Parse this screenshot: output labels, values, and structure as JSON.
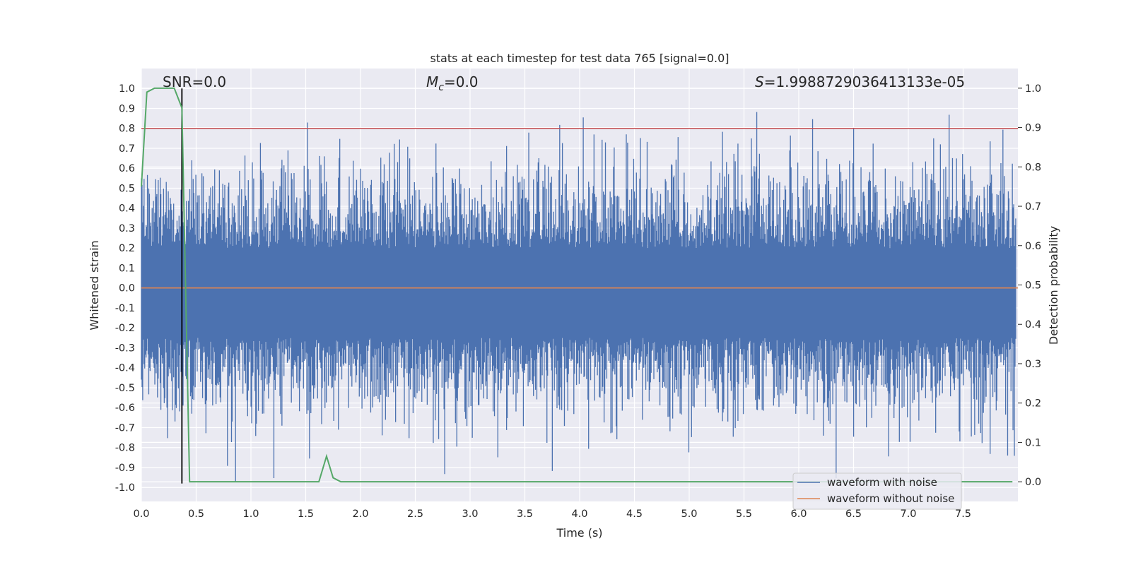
{
  "chart_data": {
    "type": "line",
    "title": "stats at each timestep for test data 765 [signal=0.0]",
    "xlabel": "Time (s)",
    "ylabel": "Whitened strain",
    "y2label": "Detection probability",
    "xlim": [
      0.0,
      8.0
    ],
    "ylim": [
      -1.07,
      1.1
    ],
    "y2lim": [
      -0.05,
      1.05
    ],
    "x_ticks": [
      "0.0",
      "0.5",
      "1.0",
      "1.5",
      "2.0",
      "2.5",
      "3.0",
      "3.5",
      "4.0",
      "4.5",
      "5.0",
      "5.5",
      "6.0",
      "6.5",
      "7.0",
      "7.5"
    ],
    "y_ticks": [
      "1.0",
      "0.9",
      "0.8",
      "0.7",
      "0.6",
      "0.5",
      "0.4",
      "0.3",
      "0.2",
      "0.1",
      "0.0",
      "-0.1",
      "-0.2",
      "-0.3",
      "-0.4",
      "-0.5",
      "-0.6",
      "-0.7",
      "-0.8",
      "-0.9",
      "-1.0"
    ],
    "y2_ticks": [
      "1.0",
      "0.9",
      "0.8",
      "0.7",
      "0.6",
      "0.5",
      "0.4",
      "0.3",
      "0.2",
      "0.1",
      "0.0"
    ],
    "grid": true,
    "legend_position": "lower-right",
    "annotations": {
      "snr": "SNR=0.0",
      "mc_symbol": "M",
      "mc_sub": "c",
      "mc_value": "=0.0",
      "s_symbol": "S",
      "s_value": "=1.9988729036413133e-05"
    },
    "series": [
      {
        "name": "waveform with noise",
        "color": "#4c72b0",
        "axis": "left",
        "kind": "noise",
        "approx_envelope": [
          -1.0,
          1.0
        ]
      },
      {
        "name": "waveform without noise",
        "color": "#dd8452",
        "axis": "left",
        "kind": "constant",
        "value": 0.0
      },
      {
        "color": "#55a868",
        "axis": "right",
        "x": [
          0.0,
          0.05,
          0.12,
          0.2,
          0.3,
          0.37,
          0.44,
          1.0,
          1.5,
          1.62,
          1.69,
          1.75,
          1.82,
          2.5,
          5.0,
          7.95
        ],
        "values": [
          0.75,
          0.99,
          1.0,
          1.0,
          1.0,
          0.95,
          0.0,
          0.0,
          0.0,
          0.0,
          0.065,
          0.01,
          0.0,
          0.0,
          0.0,
          0.0
        ]
      }
    ],
    "reference_lines": [
      {
        "axis": "left",
        "orientation": "horizontal",
        "value": 0.8,
        "color": "#c44e52"
      },
      {
        "axis": "left",
        "orientation": "vertical",
        "x": 0.37,
        "y_range": [
          -0.98,
          1.0
        ],
        "color": "#000000"
      }
    ]
  }
}
